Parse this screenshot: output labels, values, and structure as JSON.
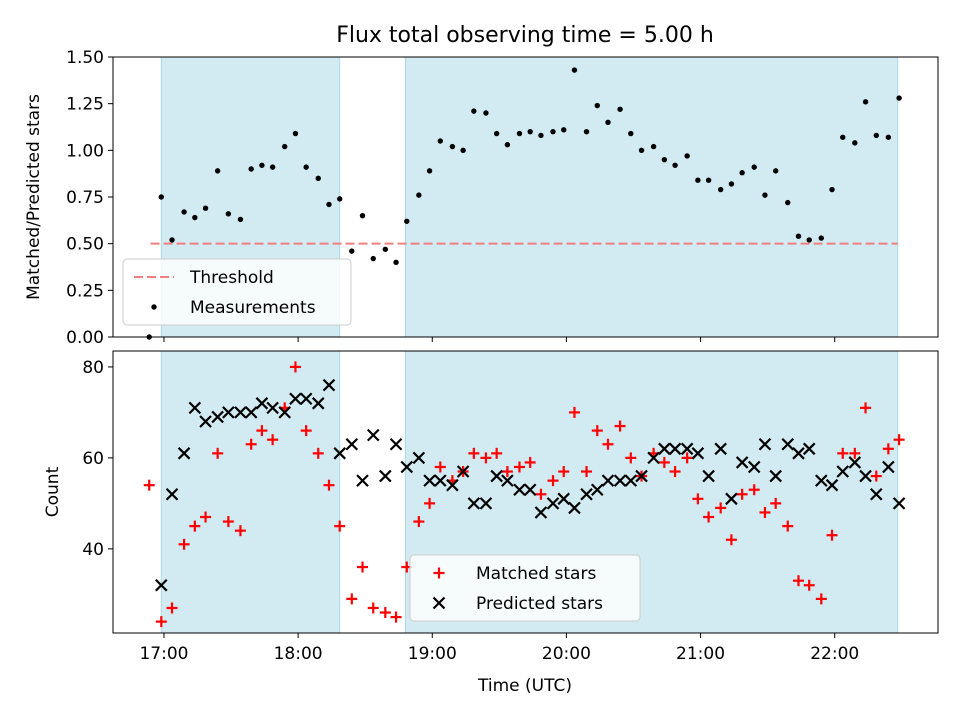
{
  "title": "Flux total observing time = 5.00 h",
  "xlabel": "Time (UTC)",
  "x_ticks": [
    "17:00",
    "18:00",
    "19:00",
    "20:00",
    "21:00",
    "22:00"
  ],
  "x_tick_hours": [
    17,
    18,
    19,
    20,
    21,
    22
  ],
  "xlim_hours": [
    16.62,
    22.77
  ],
  "observing_windows_hours": [
    [
      16.98,
      18.31
    ],
    [
      18.8,
      22.47
    ]
  ],
  "colors": {
    "window": "#add8e6",
    "threshold": "#f08080",
    "measurements": "#000000",
    "matched": "#ff0000",
    "predicted": "#000000"
  },
  "chart_data": [
    {
      "type": "scatter",
      "ylabel": "Matched/Predicted stars",
      "ylim": [
        0,
        1.5
      ],
      "y_ticks": [
        "0.00",
        "0.25",
        "0.50",
        "0.75",
        "1.00",
        "1.25",
        "1.50"
      ],
      "y_tick_values": [
        0,
        0.25,
        0.5,
        0.75,
        1.0,
        1.25,
        1.5
      ],
      "threshold": {
        "name": "Threshold",
        "value": 0.5,
        "x_range_hours": [
          16.9,
          22.47
        ]
      },
      "legend": {
        "position": "lower left",
        "entries": [
          "Threshold",
          "Measurements"
        ]
      },
      "series": [
        {
          "name": "Measurements",
          "x_hours": [
            16.89,
            16.98,
            17.06,
            17.15,
            17.23,
            17.31,
            17.4,
            17.48,
            17.57,
            17.65,
            17.73,
            17.81,
            17.9,
            17.98,
            18.06,
            18.15,
            18.23,
            18.31,
            18.4,
            18.48,
            18.56,
            18.65,
            18.73,
            18.81,
            18.9,
            18.98,
            19.06,
            19.15,
            19.23,
            19.31,
            19.4,
            19.48,
            19.56,
            19.65,
            19.73,
            19.81,
            19.9,
            19.98,
            20.06,
            20.15,
            20.23,
            20.31,
            20.4,
            20.48,
            20.56,
            20.65,
            20.73,
            20.81,
            20.9,
            20.98,
            21.06,
            21.15,
            21.23,
            21.31,
            21.4,
            21.48,
            21.56,
            21.65,
            21.73,
            21.81,
            21.9,
            21.98,
            22.06,
            22.15,
            22.23,
            22.31,
            22.4,
            22.48
          ],
          "y": [
            0.0,
            0.75,
            0.52,
            0.67,
            0.64,
            0.69,
            0.89,
            0.66,
            0.63,
            0.9,
            0.92,
            0.91,
            1.02,
            1.09,
            0.91,
            0.85,
            0.71,
            0.74,
            0.46,
            0.65,
            0.42,
            0.47,
            0.4,
            0.62,
            0.76,
            0.89,
            1.05,
            1.02,
            1.0,
            1.21,
            1.2,
            1.09,
            1.03,
            1.09,
            1.1,
            1.08,
            1.1,
            1.11,
            1.43,
            1.1,
            1.24,
            1.15,
            1.22,
            1.09,
            1.0,
            1.02,
            0.95,
            0.92,
            0.97,
            0.84,
            0.84,
            0.79,
            0.82,
            0.88,
            0.91,
            0.76,
            0.89,
            0.72,
            0.54,
            0.52,
            0.53,
            0.79,
            1.07,
            1.04,
            1.26,
            1.08,
            1.07,
            1.28
          ]
        }
      ]
    },
    {
      "type": "scatter",
      "ylabel": "Count",
      "ylim": [
        21.5,
        83.5
      ],
      "y_ticks": [
        "40",
        "60",
        "80"
      ],
      "y_tick_values": [
        40,
        60,
        80
      ],
      "legend": {
        "position": "lower center",
        "entries": [
          "Matched stars",
          "Predicted stars"
        ]
      },
      "series": [
        {
          "name": "Matched stars",
          "x_hours": [
            16.89,
            16.98,
            17.06,
            17.15,
            17.23,
            17.31,
            17.4,
            17.48,
            17.57,
            17.65,
            17.73,
            17.81,
            17.9,
            17.98,
            18.06,
            18.15,
            18.23,
            18.31,
            18.4,
            18.48,
            18.56,
            18.65,
            18.73,
            18.81,
            18.9,
            18.98,
            19.06,
            19.15,
            19.23,
            19.31,
            19.4,
            19.48,
            19.56,
            19.65,
            19.73,
            19.81,
            19.9,
            19.98,
            20.06,
            20.15,
            20.23,
            20.31,
            20.4,
            20.48,
            20.56,
            20.65,
            20.73,
            20.81,
            20.9,
            20.98,
            21.06,
            21.15,
            21.23,
            21.31,
            21.4,
            21.48,
            21.56,
            21.65,
            21.73,
            21.81,
            21.9,
            21.98,
            22.06,
            22.15,
            22.23,
            22.31,
            22.4,
            22.48
          ],
          "y": [
            54,
            24,
            27,
            41,
            45,
            47,
            61,
            46,
            44,
            63,
            66,
            64,
            71,
            80,
            66,
            61,
            54,
            45,
            29,
            36,
            27,
            26,
            25,
            36,
            46,
            50,
            58,
            55,
            57,
            61,
            60,
            61,
            57,
            58,
            59,
            52,
            55,
            57,
            70,
            57,
            66,
            63,
            67,
            60,
            56,
            61,
            59,
            57,
            60,
            51,
            47,
            49,
            42,
            52,
            53,
            48,
            50,
            45,
            33,
            32,
            29,
            43,
            61,
            61,
            71,
            56,
            62,
            64
          ]
        },
        {
          "name": "Predicted stars",
          "x_hours": [
            16.98,
            17.06,
            17.15,
            17.23,
            17.31,
            17.4,
            17.48,
            17.57,
            17.65,
            17.73,
            17.81,
            17.9,
            17.98,
            18.06,
            18.15,
            18.23,
            18.31,
            18.4,
            18.48,
            18.56,
            18.65,
            18.73,
            18.81,
            18.9,
            18.98,
            19.06,
            19.15,
            19.23,
            19.31,
            19.4,
            19.48,
            19.56,
            19.65,
            19.73,
            19.81,
            19.9,
            19.98,
            20.06,
            20.15,
            20.23,
            20.31,
            20.4,
            20.48,
            20.56,
            20.65,
            20.73,
            20.81,
            20.9,
            20.98,
            21.06,
            21.15,
            21.23,
            21.31,
            21.4,
            21.48,
            21.56,
            21.65,
            21.73,
            21.81,
            21.9,
            21.98,
            22.06,
            22.15,
            22.23,
            22.31,
            22.4,
            22.48
          ],
          "y": [
            32,
            52,
            61,
            71,
            68,
            69,
            70,
            70,
            70,
            72,
            71,
            70,
            73,
            73,
            72,
            76,
            61,
            63,
            55,
            65,
            56,
            63,
            58,
            60,
            55,
            55,
            54,
            57,
            50,
            50,
            56,
            55,
            53,
            53,
            48,
            50,
            51,
            49,
            52,
            53,
            55,
            55,
            55,
            56,
            60,
            62,
            62,
            62,
            61,
            56,
            62,
            51,
            59,
            58,
            63,
            56,
            63,
            61,
            62,
            55,
            54,
            57,
            59,
            56,
            52,
            58,
            50
          ]
        }
      ]
    }
  ]
}
